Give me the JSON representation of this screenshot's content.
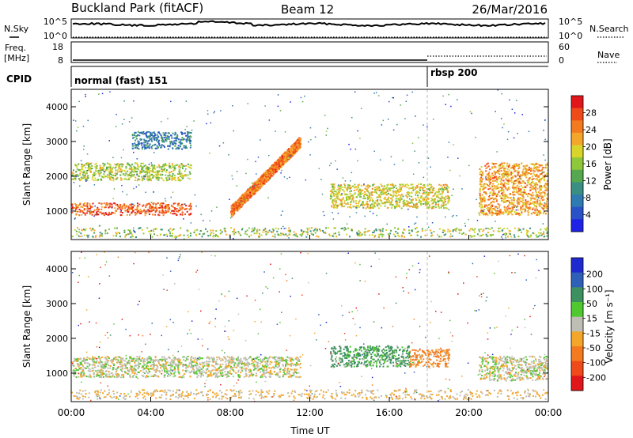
{
  "header": {
    "site": "Buckland Park (fitACF)",
    "beam": "Beam 12",
    "date": "26/Mar/2016"
  },
  "noise_panel": {
    "left_label": "N.Sky",
    "left_ticks": [
      "10^5",
      "10^0"
    ],
    "right_label": "N.Search",
    "right_ticks": [
      "10^5",
      "10^0"
    ]
  },
  "freq_panel": {
    "left_label_1": "Freq.",
    "left_label_2": "[MHz]",
    "left_ticks": [
      "18",
      "8"
    ],
    "right_label": "Nave",
    "right_ticks": [
      "60",
      "0"
    ]
  },
  "cpid_panel": {
    "label": "CPID",
    "modes": [
      {
        "name": "normal (fast) 151",
        "start_hour": 0
      },
      {
        "name": "rbsp 200",
        "start_hour": 18
      }
    ]
  },
  "chart_data": [
    {
      "type": "heatmap",
      "title": "Power",
      "ylabel": "Slant Range [km]",
      "xlabel": "Time UT",
      "xlim": [
        0,
        24
      ],
      "ylim": [
        180,
        4500
      ],
      "yticks": [
        "1000",
        "2000",
        "3000",
        "4000"
      ],
      "colorbar": {
        "label": "Power [dB]",
        "ticks": [
          "4",
          "8",
          "12",
          "16",
          "20",
          "24",
          "28"
        ],
        "colors": [
          "#1e22e6",
          "#2a52c8",
          "#2f7ab0",
          "#3a8f82",
          "#55a84f",
          "#8ec63c",
          "#d8d42a",
          "#f4a62a",
          "#f47a20",
          "#ee4a1a",
          "#e0161a"
        ]
      },
      "features": [
        {
          "name": "low-range band",
          "start_hour": 0,
          "end_hour": 6,
          "range_km": [
            900,
            1250
          ],
          "power_db": 28
        },
        {
          "name": "mid band",
          "start_hour": 0,
          "end_hour": 6,
          "range_km": [
            1900,
            2400
          ],
          "power_db": 18
        },
        {
          "name": "upper band",
          "start_hour": 3,
          "end_hour": 6,
          "range_km": [
            2800,
            3300
          ],
          "power_db": 9
        },
        {
          "name": "rising trail",
          "start_hour": 8,
          "end_hour": 11.5,
          "range_km": [
            1000,
            3000
          ],
          "power_db": 26
        },
        {
          "name": "afternoon band",
          "start_hour": 13,
          "end_hour": 19,
          "range_km": [
            1100,
            1800
          ],
          "power_db": 20
        },
        {
          "name": "evening band",
          "start_hour": 20.5,
          "end_hour": 24,
          "range_km": [
            900,
            2400
          ],
          "power_db": 24
        }
      ]
    },
    {
      "type": "heatmap",
      "title": "Velocity",
      "ylabel": "Slant Range [km]",
      "xlabel": "Time UT",
      "xlim": [
        0,
        24
      ],
      "ylim": [
        180,
        4500
      ],
      "yticks": [
        "1000",
        "2000",
        "3000",
        "4000"
      ],
      "colorbar": {
        "label": "Velocity [m s⁻¹]",
        "ticks": [
          "200",
          "100",
          "50",
          "15",
          "-15",
          "-50",
          "-100",
          "-200"
        ],
        "colors": [
          "#1e2ad0",
          "#2f60b8",
          "#3d9060",
          "#50c830",
          "#bebeb4",
          "#f4a62a",
          "#f47a20",
          "#ee4a1a",
          "#e0161a"
        ]
      },
      "features": [
        {
          "name": "ground scatter",
          "start_hour": 0,
          "end_hour": 11.5,
          "range_km": [
            900,
            1500
          ],
          "velocity_ms": 0
        },
        {
          "name": "positive flow",
          "start_hour": 13,
          "end_hour": 17,
          "range_km": [
            1200,
            1800
          ],
          "velocity_ms": 40
        },
        {
          "name": "negative flow",
          "start_hour": 17,
          "end_hour": 19,
          "range_km": [
            1200,
            1700
          ],
          "velocity_ms": -40
        },
        {
          "name": "evening ground scatter",
          "start_hour": 20.5,
          "end_hour": 24,
          "range_km": [
            800,
            1500
          ],
          "velocity_ms": 0
        }
      ]
    }
  ],
  "xaxis": {
    "ticks": [
      "00:00",
      "04:00",
      "08:00",
      "12:00",
      "16:00",
      "20:00",
      "00:00"
    ],
    "label": "Time UT"
  }
}
